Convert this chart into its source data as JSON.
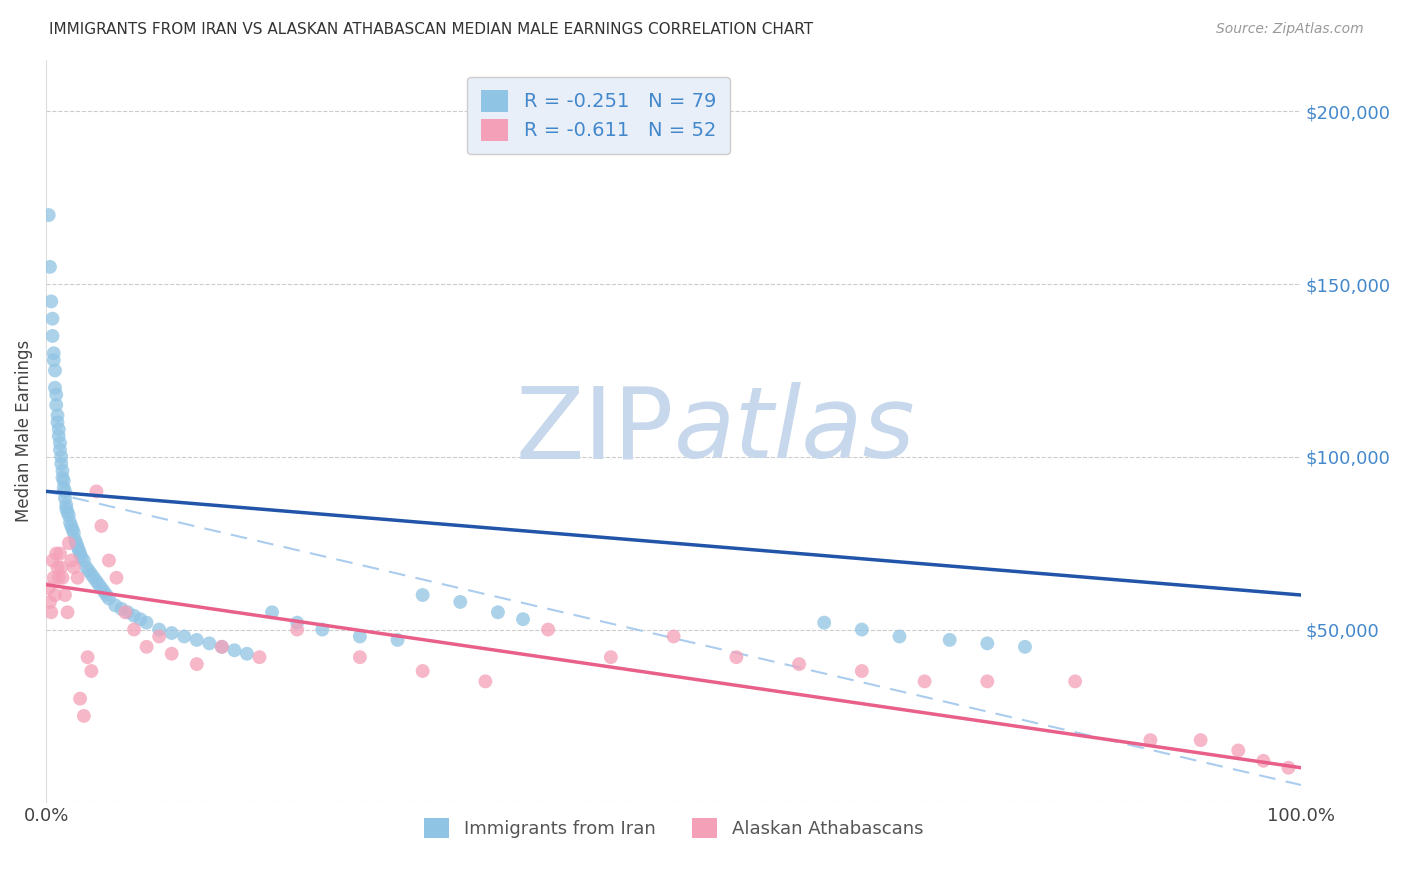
{
  "title": "IMMIGRANTS FROM IRAN VS ALASKAN ATHABASCAN MEDIAN MALE EARNINGS CORRELATION CHART",
  "source": "Source: ZipAtlas.com",
  "ylabel": "Median Male Earnings",
  "xlim": [
    0,
    1.0
  ],
  "ylim": [
    0,
    215000
  ],
  "yticks": [
    0,
    50000,
    100000,
    150000,
    200000
  ],
  "ytick_labels": [
    "",
    "$50,000",
    "$100,000",
    "$150,000",
    "$200,000"
  ],
  "blue_R": -0.251,
  "blue_N": 79,
  "pink_R": -0.611,
  "pink_N": 52,
  "blue_scatter_color": "#90C4E4",
  "pink_scatter_color": "#F4A0B8",
  "trend_blue": "#2255AA",
  "trend_pink": "#E8608A",
  "trend_dashed_color": "#AACCEE",
  "right_axis_color": "#4488CC",
  "background": "#ffffff",
  "watermark_zip": "ZIP",
  "watermark_atlas": "atlas",
  "watermark_color_zip": "#C8D8EC",
  "watermark_color_atlas": "#C8D8EC",
  "legend_frame_color": "#E8EFF8",
  "legend_edge_color": "#CCCCCC",
  "grid_color": "#CCCCCC",
  "blue_scatter_x": [
    0.002,
    0.003,
    0.004,
    0.005,
    0.005,
    0.006,
    0.006,
    0.007,
    0.007,
    0.008,
    0.008,
    0.009,
    0.009,
    0.01,
    0.01,
    0.011,
    0.011,
    0.012,
    0.012,
    0.013,
    0.013,
    0.014,
    0.014,
    0.015,
    0.015,
    0.016,
    0.016,
    0.017,
    0.018,
    0.019,
    0.02,
    0.021,
    0.022,
    0.023,
    0.024,
    0.025,
    0.026,
    0.027,
    0.028,
    0.03,
    0.032,
    0.034,
    0.036,
    0.038,
    0.04,
    0.042,
    0.044,
    0.046,
    0.048,
    0.05,
    0.055,
    0.06,
    0.065,
    0.07,
    0.075,
    0.08,
    0.09,
    0.1,
    0.11,
    0.12,
    0.13,
    0.14,
    0.15,
    0.16,
    0.18,
    0.2,
    0.22,
    0.25,
    0.28,
    0.3,
    0.33,
    0.36,
    0.38,
    0.62,
    0.65,
    0.68,
    0.72,
    0.75,
    0.78
  ],
  "blue_scatter_y": [
    170000,
    155000,
    145000,
    140000,
    135000,
    130000,
    128000,
    125000,
    120000,
    118000,
    115000,
    112000,
    110000,
    108000,
    106000,
    104000,
    102000,
    100000,
    98000,
    96000,
    94000,
    93000,
    91000,
    90000,
    88000,
    86000,
    85000,
    84000,
    83000,
    81000,
    80000,
    79000,
    78000,
    76000,
    75000,
    74000,
    73000,
    72000,
    71000,
    70000,
    68000,
    67000,
    66000,
    65000,
    64000,
    63000,
    62000,
    61000,
    60000,
    59000,
    57000,
    56000,
    55000,
    54000,
    53000,
    52000,
    50000,
    49000,
    48000,
    47000,
    46000,
    45000,
    44000,
    43000,
    55000,
    52000,
    50000,
    48000,
    47000,
    60000,
    58000,
    55000,
    53000,
    52000,
    50000,
    48000,
    47000,
    46000,
    45000
  ],
  "pink_scatter_x": [
    0.002,
    0.003,
    0.004,
    0.005,
    0.006,
    0.007,
    0.008,
    0.009,
    0.01,
    0.011,
    0.012,
    0.013,
    0.015,
    0.017,
    0.018,
    0.02,
    0.022,
    0.025,
    0.027,
    0.03,
    0.033,
    0.036,
    0.04,
    0.044,
    0.05,
    0.056,
    0.063,
    0.07,
    0.08,
    0.09,
    0.1,
    0.12,
    0.14,
    0.17,
    0.2,
    0.25,
    0.3,
    0.35,
    0.4,
    0.45,
    0.5,
    0.55,
    0.6,
    0.65,
    0.7,
    0.75,
    0.82,
    0.88,
    0.92,
    0.95,
    0.97,
    0.99
  ],
  "pink_scatter_y": [
    62000,
    58000,
    55000,
    70000,
    65000,
    60000,
    72000,
    68000,
    65000,
    72000,
    68000,
    65000,
    60000,
    55000,
    75000,
    70000,
    68000,
    65000,
    30000,
    25000,
    42000,
    38000,
    90000,
    80000,
    70000,
    65000,
    55000,
    50000,
    45000,
    48000,
    43000,
    40000,
    45000,
    42000,
    50000,
    42000,
    38000,
    35000,
    50000,
    42000,
    48000,
    42000,
    40000,
    38000,
    35000,
    35000,
    35000,
    18000,
    18000,
    15000,
    12000,
    10000
  ],
  "blue_trend_x": [
    0.0,
    1.0
  ],
  "blue_trend_y": [
    90000,
    60000
  ],
  "pink_trend_x": [
    0.0,
    1.0
  ],
  "pink_trend_y": [
    63000,
    10000
  ],
  "dashed_trend_x": [
    0.0,
    1.0
  ],
  "dashed_trend_y": [
    90000,
    5000
  ]
}
